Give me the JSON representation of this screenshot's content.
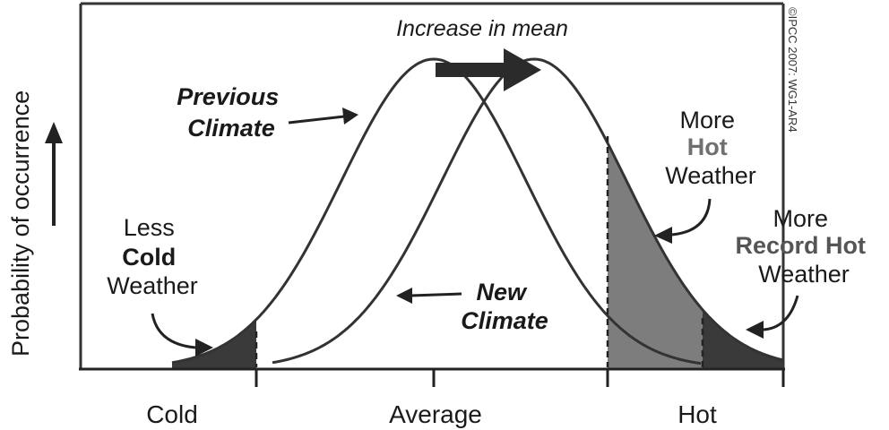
{
  "title": "Increase in mean",
  "yaxis": {
    "label": "Probability of occurrence"
  },
  "xaxis": {
    "ticks": [
      "Cold",
      "Average",
      "Hot"
    ]
  },
  "labels": {
    "previous_climate": [
      "Previous",
      "Climate"
    ],
    "new_climate": [
      "New",
      "Climate"
    ],
    "less_cold": [
      "Less",
      "Cold",
      "Weather"
    ],
    "more_hot": [
      "More",
      "Hot",
      "Weather"
    ],
    "more_record_hot": [
      "More",
      "Record Hot",
      "Weather"
    ]
  },
  "copyright": "©IPCC 2007: WG1-AR4",
  "colors": {
    "curve": "#333333",
    "shade_medium": "#7d7d7d",
    "shade_dark": "#3a3a3a",
    "arrow": "#2b2b2b",
    "text": "#1a1a1a",
    "accent_gray": "#707070"
  }
}
